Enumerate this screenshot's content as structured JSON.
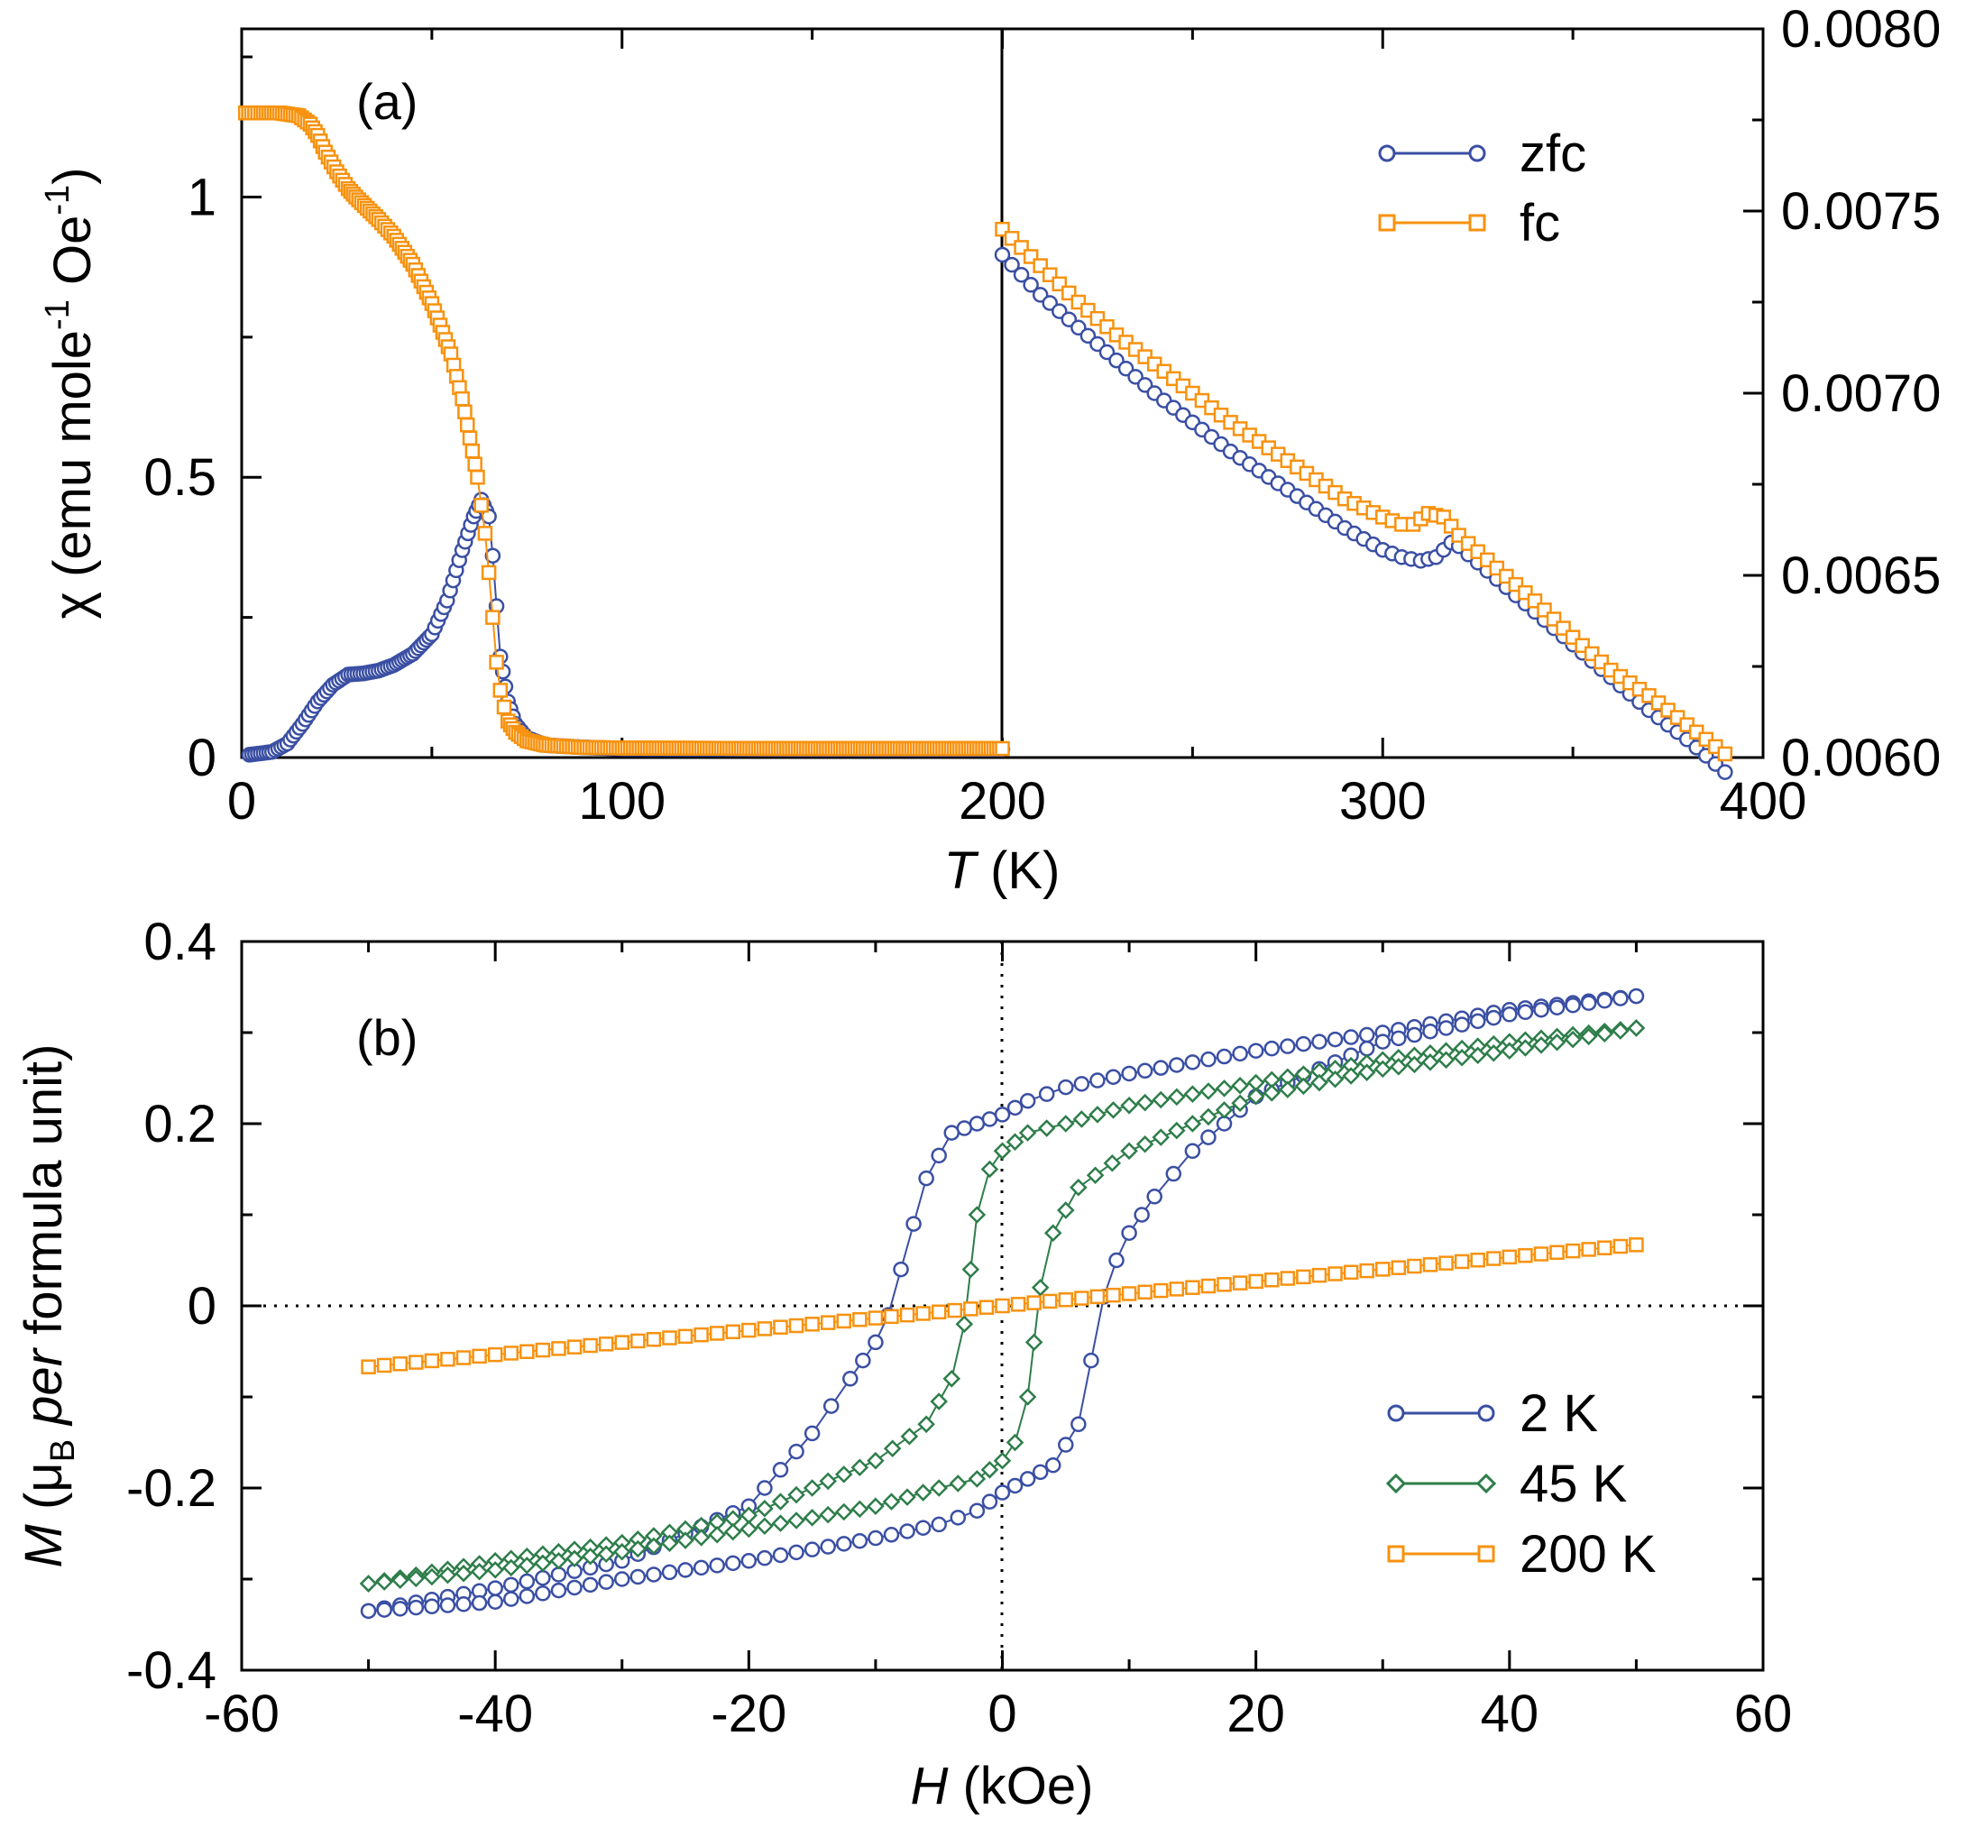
{
  "colors": {
    "zfc": "#3a4fa3",
    "fc": "#f7920f",
    "k2": "#3a4fa3",
    "k45": "#2e7d4a",
    "k200": "#f7920f"
  },
  "chart_data": [
    {
      "panel": "(a)",
      "type": "scatter",
      "xlabel_var": "T",
      "xlabel_unit": " (K)",
      "ylabel_left": "χ (emu mole",
      "ylabel_left_sup": "-1",
      "ylabel_left_mid": " Oe",
      "ylabel_left_sup2": "-1",
      "ylabel_left_end": ")",
      "xlim": [
        0,
        400
      ],
      "ylim_left": [
        0,
        1.3
      ],
      "ylim_right": [
        0.006,
        0.008
      ],
      "split_x": 200,
      "xticks": [
        "0",
        "100",
        "200",
        "300",
        "400"
      ],
      "yticks_left": [
        "0",
        "0.5",
        "1"
      ],
      "yticks_right": [
        "0.0060",
        "0.0065",
        "0.0070",
        "0.0075",
        "0.0080"
      ],
      "legend": [
        "zfc",
        "fc"
      ],
      "legend_position": "top-right",
      "series": [
        {
          "name": "zfc",
          "marker": "circle",
          "segments": [
            {
              "axis": "left",
              "x": [
                2,
                8,
                12,
                16,
                20,
                24,
                28,
                32,
                36,
                40,
                45,
                50,
                54,
                58,
                61,
                63,
                65,
                66,
                67,
                68,
                70,
                72,
                75,
                80,
                90,
                100,
                150,
                200
              ],
              "y": [
                0.005,
                0.01,
                0.025,
                0.06,
                0.1,
                0.13,
                0.148,
                0.15,
                0.155,
                0.165,
                0.185,
                0.22,
                0.28,
                0.37,
                0.43,
                0.46,
                0.43,
                0.36,
                0.27,
                0.18,
                0.1,
                0.06,
                0.035,
                0.022,
                0.018,
                0.016,
                0.015,
                0.015
              ]
            },
            {
              "axis": "right",
              "x": [
                200,
                210,
                220,
                230,
                240,
                250,
                260,
                270,
                280,
                290,
                300,
                305,
                310,
                314,
                318,
                320,
                330,
                340,
                350,
                360,
                370,
                380,
                390
              ],
              "y": [
                0.00738,
                0.00727,
                0.00718,
                0.00709,
                0.007,
                0.00692,
                0.00684,
                0.00677,
                0.0067,
                0.00663,
                0.00657,
                0.00655,
                0.00654,
                0.00655,
                0.00659,
                0.00658,
                0.00649,
                0.0064,
                0.00631,
                0.00622,
                0.00613,
                0.00605,
                0.00596
              ]
            }
          ]
        },
        {
          "name": "fc",
          "marker": "square",
          "segments": [
            {
              "axis": "left",
              "x": [
                1,
                5,
                10,
                15,
                18,
                20,
                22,
                25,
                28,
                30,
                33,
                36,
                40,
                45,
                50,
                55,
                58,
                60,
                62,
                63,
                64,
                65,
                66,
                67,
                68,
                69,
                70,
                72,
                75,
                80,
                90,
                100,
                150,
                200
              ],
              "y": [
                1.15,
                1.15,
                1.15,
                1.145,
                1.13,
                1.11,
                1.08,
                1.045,
                1.015,
                1.0,
                0.98,
                0.96,
                0.93,
                0.88,
                0.81,
                0.72,
                0.64,
                0.57,
                0.5,
                0.45,
                0.4,
                0.33,
                0.25,
                0.17,
                0.12,
                0.09,
                0.065,
                0.045,
                0.03,
                0.022,
                0.018,
                0.017,
                0.016,
                0.016
              ]
            },
            {
              "axis": "right",
              "x": [
                200,
                210,
                220,
                230,
                240,
                250,
                260,
                270,
                280,
                290,
                300,
                305,
                308,
                312,
                316,
                320,
                330,
                340,
                350,
                360,
                370,
                380,
                390
              ],
              "y": [
                0.00745,
                0.00735,
                0.00725,
                0.00716,
                0.00708,
                0.007,
                0.00692,
                0.00685,
                0.00678,
                0.00671,
                0.00666,
                0.00664,
                0.00664,
                0.00667,
                0.00666,
                0.00661,
                0.00652,
                0.00643,
                0.00633,
                0.00624,
                0.00617,
                0.00609,
                0.00601
              ]
            }
          ]
        }
      ]
    },
    {
      "panel": "(b)",
      "type": "scatter",
      "xlabel_var": "H",
      "xlabel_unit": " (kOe)",
      "ylabel_var": "M",
      "ylabel_rest": " (μ",
      "ylabel_sub": "B",
      "ylabel_per": " per",
      "ylabel_end": " formula unit)",
      "xlim": [
        -60,
        60
      ],
      "ylim": [
        -0.4,
        0.4
      ],
      "xticks": [
        "-60",
        "-40",
        "-20",
        "0",
        "20",
        "40",
        "60"
      ],
      "yticks": [
        "-0.4",
        "-0.2",
        "0",
        "0.2",
        "0.4"
      ],
      "legend": [
        "2 K",
        "45 K",
        "200 K"
      ],
      "legend_position": "bottom-right",
      "series": [
        {
          "name": "2 K",
          "marker": "circle",
          "branches": [
            {
              "x": [
                50,
                40,
                30,
                20,
                10,
                5,
                2,
                0,
                -2,
                -4,
                -6,
                -7,
                -8,
                -9,
                -10,
                -12,
                -15,
                -20,
                -30,
                -40,
                -50
              ],
              "y": [
                0.34,
                0.325,
                0.3,
                0.28,
                0.255,
                0.24,
                0.225,
                0.21,
                0.2,
                0.19,
                0.14,
                0.09,
                0.04,
                -0.01,
                -0.04,
                -0.08,
                -0.14,
                -0.22,
                -0.28,
                -0.31,
                -0.335
              ]
            },
            {
              "x": [
                -50,
                -40,
                -30,
                -20,
                -10,
                -5,
                -2,
                0,
                2,
                4,
                6,
                7,
                8,
                9,
                10,
                12,
                15,
                20,
                30,
                40,
                50
              ],
              "y": [
                -0.335,
                -0.325,
                -0.3,
                -0.28,
                -0.255,
                -0.24,
                -0.225,
                -0.205,
                -0.19,
                -0.175,
                -0.13,
                -0.06,
                0.01,
                0.05,
                0.08,
                0.12,
                0.17,
                0.23,
                0.29,
                0.32,
                0.34
              ]
            }
          ]
        },
        {
          "name": "45 K",
          "marker": "diamond",
          "branches": [
            {
              "x": [
                50,
                40,
                30,
                20,
                10,
                5,
                2,
                0,
                -1,
                -2,
                -2.5,
                -3,
                -4,
                -6,
                -10,
                -20,
                -30,
                -40,
                -50
              ],
              "y": [
                0.305,
                0.29,
                0.27,
                0.245,
                0.22,
                0.2,
                0.19,
                0.17,
                0.15,
                0.1,
                0.04,
                -0.02,
                -0.08,
                -0.13,
                -0.17,
                -0.23,
                -0.26,
                -0.28,
                -0.305
              ]
            },
            {
              "x": [
                -50,
                -40,
                -30,
                -20,
                -10,
                -5,
                -2,
                0,
                1,
                2,
                2.5,
                3,
                4,
                6,
                10,
                20,
                30,
                40,
                50
              ],
              "y": [
                -0.305,
                -0.29,
                -0.27,
                -0.245,
                -0.22,
                -0.2,
                -0.19,
                -0.17,
                -0.15,
                -0.1,
                -0.04,
                0.02,
                0.08,
                0.13,
                0.17,
                0.23,
                0.26,
                0.28,
                0.305
              ]
            }
          ]
        },
        {
          "name": "200 K",
          "marker": "square",
          "branches": [
            {
              "x": [
                -50,
                50
              ],
              "y": [
                -0.067,
                0.067
              ]
            }
          ]
        }
      ]
    }
  ]
}
